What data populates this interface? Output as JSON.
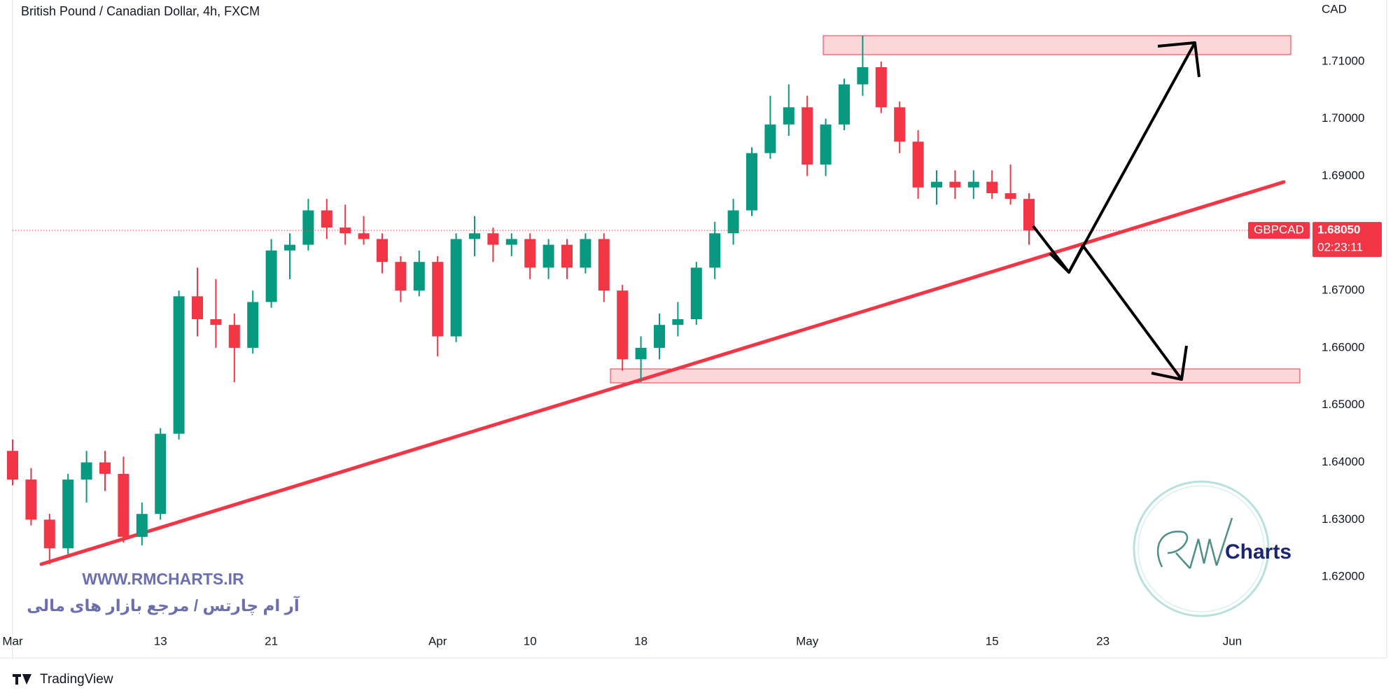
{
  "chart_data": {
    "type": "candlestick",
    "title": "British Pound / Canadian Dollar, 4h, FXCM",
    "currency": "CAD",
    "symbol": "GBPCAD",
    "last_price": {
      "value": 1.6805,
      "label": "1.68050"
    },
    "countdown": "02:23:11",
    "up_color": "#089981",
    "down_color": "#f23645",
    "categories": [
      "Mar",
      null,
      null,
      null,
      null,
      null,
      null,
      null,
      "13",
      null,
      null,
      null,
      null,
      null,
      "21",
      null,
      null,
      null,
      null,
      null,
      null,
      null,
      null,
      "Apr",
      null,
      null,
      null,
      null,
      "10",
      null,
      null,
      null,
      null,
      null,
      "18",
      null,
      null,
      null,
      null,
      null,
      null,
      null,
      null,
      "May",
      null,
      null,
      null,
      null,
      null,
      null,
      null,
      null,
      null,
      "15",
      null,
      null,
      null,
      null,
      null,
      "23",
      null,
      null,
      null,
      null,
      null,
      null,
      "Jun"
    ],
    "open": [
      1.642,
      1.637,
      1.63,
      1.625,
      1.637,
      1.64,
      1.638,
      1.627,
      1.631,
      1.645,
      1.669,
      1.665,
      1.664,
      1.66,
      1.668,
      1.677,
      1.678,
      1.684,
      1.681,
      1.68,
      1.679,
      1.675,
      1.67,
      1.675,
      1.662,
      1.679,
      1.68,
      1.678,
      1.679,
      1.674,
      1.678,
      1.674,
      1.679,
      1.67,
      1.658,
      1.66,
      1.664,
      1.665,
      1.674,
      1.68,
      1.684,
      1.694,
      1.699,
      1.702,
      1.692,
      1.699,
      1.706,
      1.709,
      1.702,
      1.696,
      1.688,
      1.689,
      1.688,
      1.689,
      1.687,
      1.686,
      null,
      null,
      null,
      null,
      null,
      null,
      null,
      null,
      null,
      null,
      null
    ],
    "high": [
      1.644,
      1.639,
      1.631,
      1.638,
      1.642,
      1.642,
      1.641,
      1.633,
      1.646,
      1.67,
      1.674,
      1.672,
      1.666,
      1.67,
      1.679,
      1.68,
      1.686,
      1.686,
      1.685,
      1.683,
      1.68,
      1.676,
      1.677,
      1.676,
      1.68,
      1.683,
      1.681,
      1.68,
      1.68,
      1.679,
      1.679,
      1.68,
      1.68,
      1.671,
      1.662,
      1.666,
      1.668,
      1.675,
      1.682,
      1.686,
      1.695,
      1.704,
      1.706,
      1.704,
      1.7,
      1.707,
      1.7145,
      1.71,
      1.703,
      1.698,
      1.691,
      1.691,
      1.691,
      1.691,
      1.692,
      1.687,
      null,
      null,
      null,
      null,
      null,
      null,
      null,
      null,
      null,
      null,
      null
    ],
    "low": [
      1.636,
      1.629,
      1.6222,
      1.624,
      1.633,
      1.635,
      1.626,
      1.6255,
      1.63,
      1.644,
      1.662,
      1.66,
      1.654,
      1.659,
      1.667,
      1.672,
      1.677,
      1.679,
      1.678,
      1.678,
      1.673,
      1.668,
      1.669,
      1.6585,
      1.661,
      1.676,
      1.675,
      1.676,
      1.672,
      1.672,
      1.672,
      1.673,
      1.668,
      1.656,
      1.654,
      1.658,
      1.662,
      1.664,
      1.672,
      1.678,
      1.683,
      1.693,
      1.697,
      1.69,
      1.69,
      1.698,
      1.704,
      1.701,
      1.694,
      1.686,
      1.685,
      1.686,
      1.686,
      1.686,
      1.685,
      1.678,
      null,
      null,
      null,
      null,
      null,
      null,
      null,
      null,
      null,
      null,
      null
    ],
    "close": [
      1.637,
      1.63,
      1.625,
      1.637,
      1.64,
      1.638,
      1.627,
      1.631,
      1.645,
      1.669,
      1.665,
      1.664,
      1.66,
      1.668,
      1.677,
      1.678,
      1.684,
      1.681,
      1.68,
      1.679,
      1.675,
      1.67,
      1.675,
      1.662,
      1.679,
      1.68,
      1.678,
      1.679,
      1.674,
      1.678,
      1.674,
      1.679,
      1.67,
      1.658,
      1.66,
      1.664,
      1.665,
      1.674,
      1.68,
      1.684,
      1.694,
      1.699,
      1.702,
      1.692,
      1.699,
      1.706,
      1.709,
      1.702,
      1.696,
      1.688,
      1.689,
      1.688,
      1.689,
      1.687,
      1.686,
      1.6805,
      null,
      null,
      null,
      null,
      null,
      null,
      null,
      null,
      null,
      null,
      null
    ],
    "ylim": [
      1.61,
      1.72
    ],
    "yticks": [
      {
        "value": 1.62,
        "label": "1.62000"
      },
      {
        "value": 1.63,
        "label": "1.63000"
      },
      {
        "value": 1.64,
        "label": "1.64000"
      },
      {
        "value": 1.65,
        "label": "1.65000"
      },
      {
        "value": 1.66,
        "label": "1.66000"
      },
      {
        "value": 1.67,
        "label": "1.67000"
      },
      {
        "value": 1.68,
        "label": "1.68000"
      },
      {
        "value": 1.69,
        "label": "1.69000"
      },
      {
        "value": 1.7,
        "label": "1.70000"
      },
      {
        "value": 1.71,
        "label": "1.71000"
      }
    ],
    "grid": false
  },
  "watermark": {
    "url": "WWW.RMCHARTS.IR",
    "tagline": "آر ام چارتس / مرجع بازار های مالی",
    "logo": "Charts"
  },
  "footer": {
    "brand": "TradingView"
  }
}
